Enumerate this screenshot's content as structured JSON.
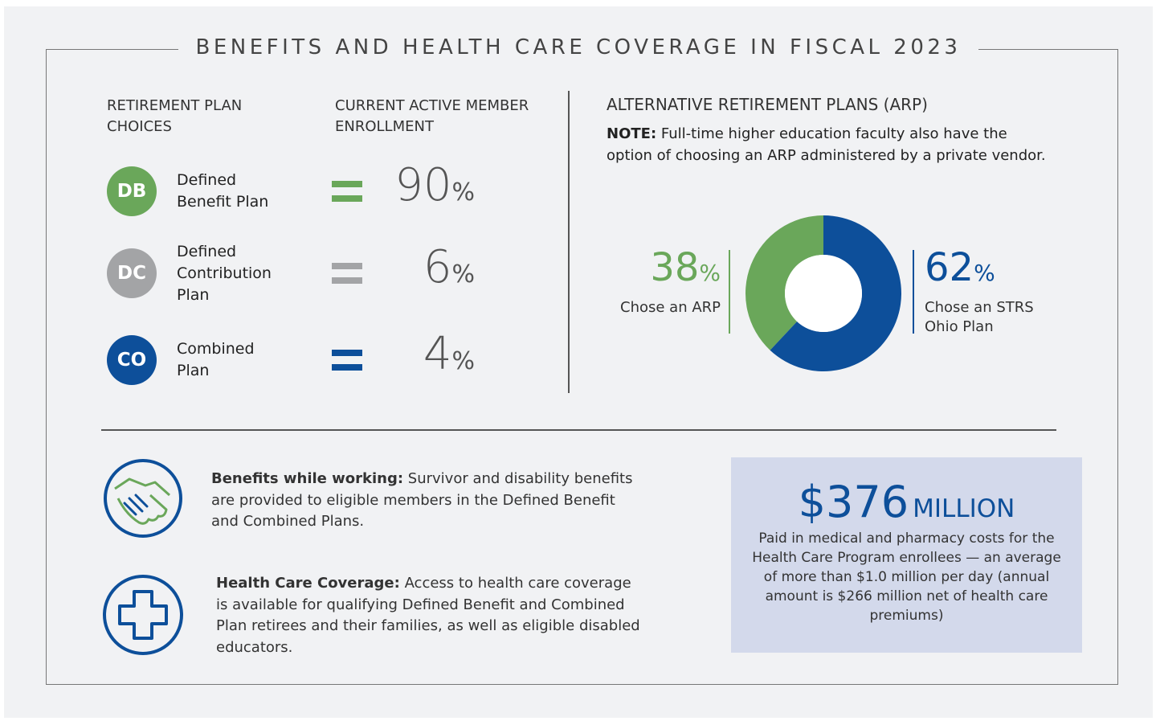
{
  "title": "BENEFITS AND HEALTH CARE COVERAGE IN FISCAL 2023",
  "plans": {
    "headers": [
      "RETIREMENT PLAN CHOICES",
      "CURRENT ACTIVE MEMBER ENROLLMENT"
    ],
    "unit": "%",
    "rows": [
      {
        "badge": "DB",
        "name": "Defined Benefit Plan",
        "value": 90,
        "color": "#6aa75a"
      },
      {
        "badge": "DC",
        "name": "Defined Contribution Plan",
        "value": 6,
        "color": "#a3a4a6"
      },
      {
        "badge": "CO",
        "name": "Combined Plan",
        "value": 4,
        "color": "#0d4f9a"
      }
    ]
  },
  "arp": {
    "title": "ALTERNATIVE RETIREMENT PLANS (ARP)",
    "note_label": "NOTE:",
    "note": "Full-time higher education faculty also have the option of choosing an ARP administered by a private vendor."
  },
  "chart_data": {
    "type": "pie",
    "categories": [
      "Chose an ARP",
      "Chose an STRS Ohio Plan"
    ],
    "values": [
      38,
      62
    ],
    "unit": "%",
    "colors": [
      "#6aa75a",
      "#0d4f9a"
    ]
  },
  "benefits": [
    {
      "label": "Benefits while working:",
      "text": "Survivor and disability benefits are provided to eligible members in the Defined Benefit and Combined Plans."
    },
    {
      "label": "Health Care Coverage:",
      "text": "Access to health care coverage is available for qualifying Defined Benefit and Combined Plan retirees and their families, as well as eligible disabled educators."
    }
  ],
  "cost": {
    "amount": "$376",
    "amount_unit": "MILLION",
    "description": "Paid in medical and pharmacy costs for the Health Care Program enrollees — an average of more than $1.0 million per day (annual amount is $266 million net of health care premiums)"
  }
}
